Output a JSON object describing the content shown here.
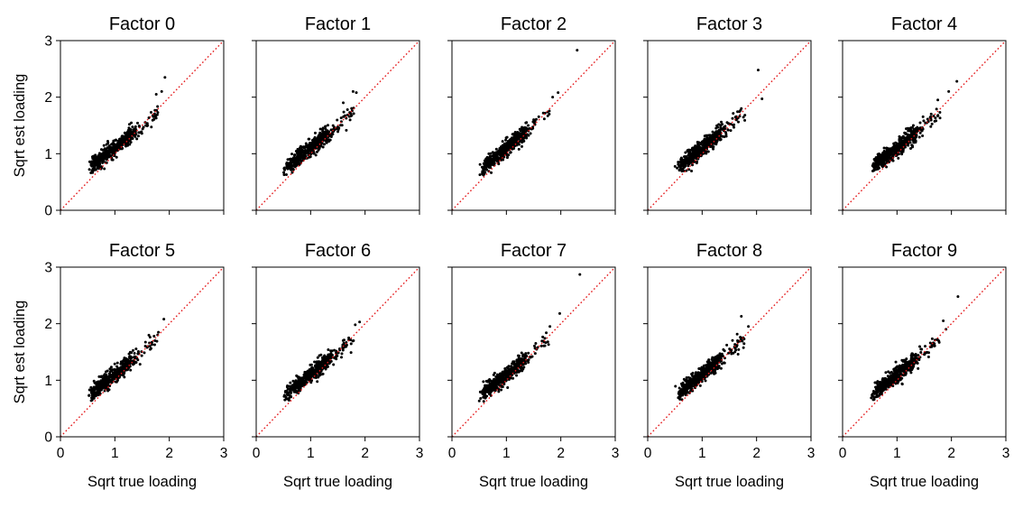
{
  "chart_data": {
    "type": "scatter",
    "layout": {
      "rows": 2,
      "cols": 5,
      "sharex": true,
      "sharey": true
    },
    "xlabel": "Sqrt true loading",
    "ylabel": "Sqrt est loading",
    "xlim": [
      0,
      3
    ],
    "ylim": [
      0,
      3
    ],
    "xticks": [
      "0",
      "1",
      "2",
      "3"
    ],
    "yticks": [
      "0",
      "1",
      "2",
      "3"
    ],
    "reference_line": {
      "slope": 1,
      "intercept": 0,
      "style": "dotted",
      "color": "#e41a1c"
    },
    "point_color": "#000000",
    "points_per_panel": 500,
    "panels": [
      {
        "title": "Factor 0",
        "seed": 11,
        "outliers": [
          [
            1.76,
            2.05
          ],
          [
            1.86,
            2.1
          ],
          [
            1.92,
            2.35
          ]
        ]
      },
      {
        "title": "Factor 1",
        "seed": 23,
        "outliers": [
          [
            1.78,
            2.1
          ],
          [
            1.84,
            2.08
          ],
          [
            1.6,
            1.9
          ]
        ]
      },
      {
        "title": "Factor 2",
        "seed": 37,
        "outliers": [
          [
            2.3,
            2.83
          ],
          [
            1.95,
            2.08
          ],
          [
            1.85,
            2.0
          ]
        ]
      },
      {
        "title": "Factor 3",
        "seed": 41,
        "outliers": [
          [
            2.03,
            2.48
          ],
          [
            2.1,
            1.97
          ],
          [
            1.72,
            1.8
          ]
        ]
      },
      {
        "title": "Factor 4",
        "seed": 53,
        "outliers": [
          [
            2.1,
            2.28
          ],
          [
            1.95,
            2.1
          ],
          [
            1.75,
            1.95
          ]
        ]
      },
      {
        "title": "Factor 5",
        "seed": 67,
        "outliers": [
          [
            1.9,
            2.08
          ],
          [
            1.8,
            1.85
          ],
          [
            1.72,
            1.78
          ]
        ]
      },
      {
        "title": "Factor 6",
        "seed": 71,
        "outliers": [
          [
            1.9,
            2.03
          ],
          [
            1.82,
            1.98
          ],
          [
            1.7,
            1.75
          ]
        ]
      },
      {
        "title": "Factor 7",
        "seed": 83,
        "outliers": [
          [
            2.35,
            2.87
          ],
          [
            1.98,
            2.18
          ],
          [
            1.8,
            1.95
          ]
        ]
      },
      {
        "title": "Factor 8",
        "seed": 97,
        "outliers": [
          [
            1.72,
            2.13
          ],
          [
            1.85,
            1.95
          ],
          [
            1.65,
            1.7
          ]
        ]
      },
      {
        "title": "Factor 9",
        "seed": 101,
        "outliers": [
          [
            2.12,
            2.48
          ],
          [
            1.85,
            2.05
          ],
          [
            1.9,
            1.9
          ]
        ]
      }
    ]
  }
}
